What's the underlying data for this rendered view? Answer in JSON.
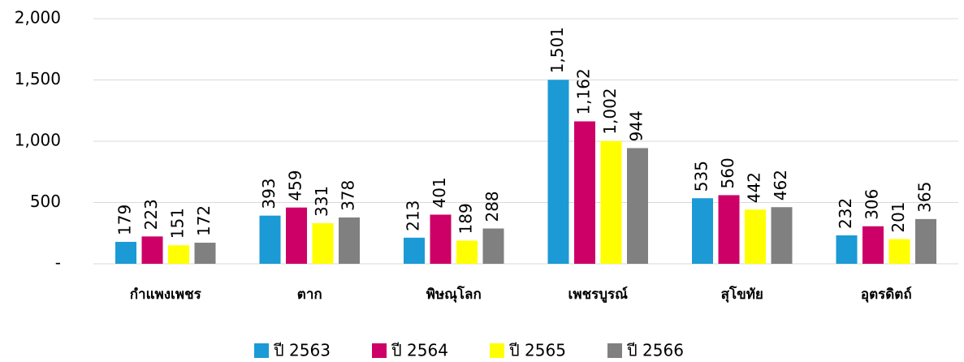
{
  "chart_data": {
    "type": "bar",
    "categories": [
      "กำแพงเพชร",
      "ตาก",
      "พิษณุโลก",
      "เพชรบูรณ์",
      "สุโขทัย",
      "อุตรดิตถ์"
    ],
    "series": [
      {
        "name": "ปี 2563",
        "color": "#1b9ad6",
        "values": [
          179,
          393,
          213,
          1501,
          535,
          232
        ],
        "value_labels": [
          "179",
          "393",
          "213",
          "1,501",
          "535",
          "232"
        ]
      },
      {
        "name": "ปี 2564",
        "color": "#cc0066",
        "values": [
          223,
          459,
          401,
          1162,
          560,
          306
        ],
        "value_labels": [
          "223",
          "459",
          "401",
          "1,162",
          "560",
          "306"
        ]
      },
      {
        "name": "ปี 2565",
        "color": "#ffff00",
        "values": [
          151,
          331,
          189,
          1002,
          442,
          201
        ],
        "value_labels": [
          "151",
          "331",
          "189",
          "1,002",
          "442",
          "201"
        ]
      },
      {
        "name": "ปี 2566",
        "color": "#808080",
        "values": [
          172,
          378,
          288,
          944,
          462,
          365
        ]
      }
    ],
    "ylim": [
      0,
      2000
    ],
    "yticks": [
      {
        "value": 0,
        "label": "-"
      },
      500,
      {
        "value": 1000,
        "label": "1,000"
      },
      {
        "value": 1500,
        "label": "1,500"
      },
      {
        "value": 2000,
        "label": "2,000"
      }
    ],
    "grid": true,
    "legend": "bottom"
  }
}
